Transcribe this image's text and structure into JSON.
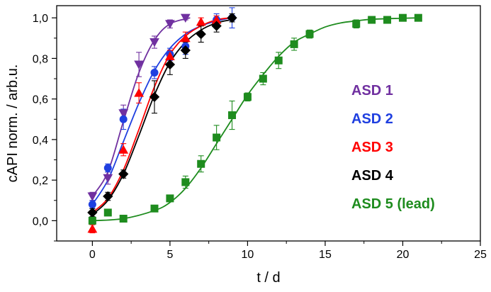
{
  "chart_data": {
    "type": "scatter",
    "title": "",
    "xlabel": "t / d",
    "ylabel": "cAPI norm. / arb.u.",
    "xlim": [
      -2.3,
      25
    ],
    "ylim": [
      -0.1,
      1.06
    ],
    "xticks": [
      0,
      5,
      10,
      15,
      20,
      25
    ],
    "xtick_labels": [
      "0",
      "5",
      "10",
      "15",
      "20",
      "25"
    ],
    "yticks": [
      0.0,
      0.2,
      0.4,
      0.6,
      0.8,
      1.0
    ],
    "ytick_labels": [
      "0,0",
      "0,2",
      "0,4",
      "0,6",
      "0,8",
      "1,0"
    ],
    "grid": false,
    "legend_placement": "right",
    "series": [
      {
        "name": "ASD 1",
        "color": "#7030a0",
        "marker": "triangle-down",
        "x": [
          0,
          1,
          2,
          3,
          4,
          5,
          6
        ],
        "y": [
          0.12,
          0.21,
          0.53,
          0.77,
          0.88,
          0.97,
          1.0
        ],
        "err": [
          0.02,
          0.03,
          0.04,
          0.06,
          0.03,
          0.02,
          0.01
        ],
        "fit": [
          [
            0,
            0.12
          ],
          [
            1,
            0.24
          ],
          [
            2,
            0.49
          ],
          [
            3,
            0.73
          ],
          [
            4,
            0.89
          ],
          [
            5,
            0.97
          ],
          [
            6.3,
            1.0
          ]
        ]
      },
      {
        "name": "ASD 2",
        "color": "#1f3fe0",
        "marker": "circle",
        "x": [
          0,
          1,
          2,
          4,
          5,
          6,
          8,
          9
        ],
        "y": [
          0.08,
          0.26,
          0.5,
          0.73,
          0.82,
          0.86,
          0.99,
          1.0
        ],
        "err": [
          0.02,
          0.02,
          0.05,
          0.03,
          0.03,
          0.04,
          0.03,
          0.05
        ],
        "fit": [
          [
            0,
            0.08
          ],
          [
            1,
            0.2
          ],
          [
            2,
            0.39
          ],
          [
            3,
            0.58
          ],
          [
            4,
            0.74
          ],
          [
            5,
            0.85
          ],
          [
            6,
            0.92
          ],
          [
            7,
            0.96
          ],
          [
            8,
            0.985
          ],
          [
            8.9,
            1.0
          ]
        ]
      },
      {
        "name": "ASD 3",
        "color": "#ff0000",
        "marker": "triangle-up",
        "x": [
          0,
          2,
          3,
          5,
          6,
          7,
          8
        ],
        "y": [
          -0.04,
          0.35,
          0.63,
          0.81,
          0.9,
          0.98,
          0.99
        ],
        "err": [
          0.02,
          0.03,
          0.05,
          0.03,
          0.03,
          0.02,
          0.02
        ],
        "fit": [
          [
            0,
            0.04
          ],
          [
            1,
            0.11
          ],
          [
            2,
            0.25
          ],
          [
            3,
            0.45
          ],
          [
            4,
            0.66
          ],
          [
            5,
            0.82
          ],
          [
            6,
            0.91
          ],
          [
            7,
            0.96
          ],
          [
            8,
            0.99
          ],
          [
            8.9,
            1.0
          ]
        ]
      },
      {
        "name": "ASD 4",
        "color": "#000000",
        "marker": "diamond",
        "x": [
          0,
          1,
          2,
          4,
          5,
          6,
          7,
          8,
          9
        ],
        "y": [
          0.04,
          0.12,
          0.23,
          0.61,
          0.77,
          0.84,
          0.92,
          0.96,
          1.0
        ],
        "err": [
          0.02,
          0.02,
          0.02,
          0.08,
          0.05,
          0.04,
          0.04,
          0.03,
          0.02
        ],
        "fit": [
          [
            0,
            0.03
          ],
          [
            1,
            0.1
          ],
          [
            2,
            0.23
          ],
          [
            3,
            0.42
          ],
          [
            4,
            0.62
          ],
          [
            5,
            0.78
          ],
          [
            6,
            0.88
          ],
          [
            7,
            0.94
          ],
          [
            8,
            0.975
          ],
          [
            8.9,
            0.99
          ]
        ]
      },
      {
        "name": "ASD 5 (lead)",
        "color": "#1e8c1e",
        "marker": "square",
        "x": [
          0,
          1,
          2,
          4,
          5,
          6,
          7,
          8,
          9,
          10,
          11,
          12,
          13,
          14,
          17,
          18,
          19,
          20,
          21
        ],
        "y": [
          0.0,
          0.04,
          0.01,
          0.06,
          0.11,
          0.19,
          0.28,
          0.41,
          0.52,
          0.61,
          0.7,
          0.79,
          0.87,
          0.92,
          0.97,
          0.99,
          0.99,
          1.0,
          1.0
        ],
        "err": [
          0.01,
          0.01,
          0.01,
          0.01,
          0.01,
          0.03,
          0.04,
          0.06,
          0.07,
          0.02,
          0.03,
          0.04,
          0.03,
          0.02,
          0.02,
          0.01,
          0.01,
          0.01,
          0.01
        ],
        "fit": [
          [
            0,
            0.0
          ],
          [
            2,
            0.01
          ],
          [
            4,
            0.05
          ],
          [
            5,
            0.09
          ],
          [
            6,
            0.16
          ],
          [
            7,
            0.26
          ],
          [
            8,
            0.38
          ],
          [
            9,
            0.5
          ],
          [
            10,
            0.62
          ],
          [
            11,
            0.72
          ],
          [
            12,
            0.81
          ],
          [
            13,
            0.88
          ],
          [
            14,
            0.92
          ],
          [
            15,
            0.955
          ],
          [
            16,
            0.975
          ],
          [
            17,
            0.985
          ],
          [
            18,
            0.993
          ],
          [
            20,
            0.998
          ],
          [
            21,
            1.0
          ]
        ]
      }
    ]
  }
}
